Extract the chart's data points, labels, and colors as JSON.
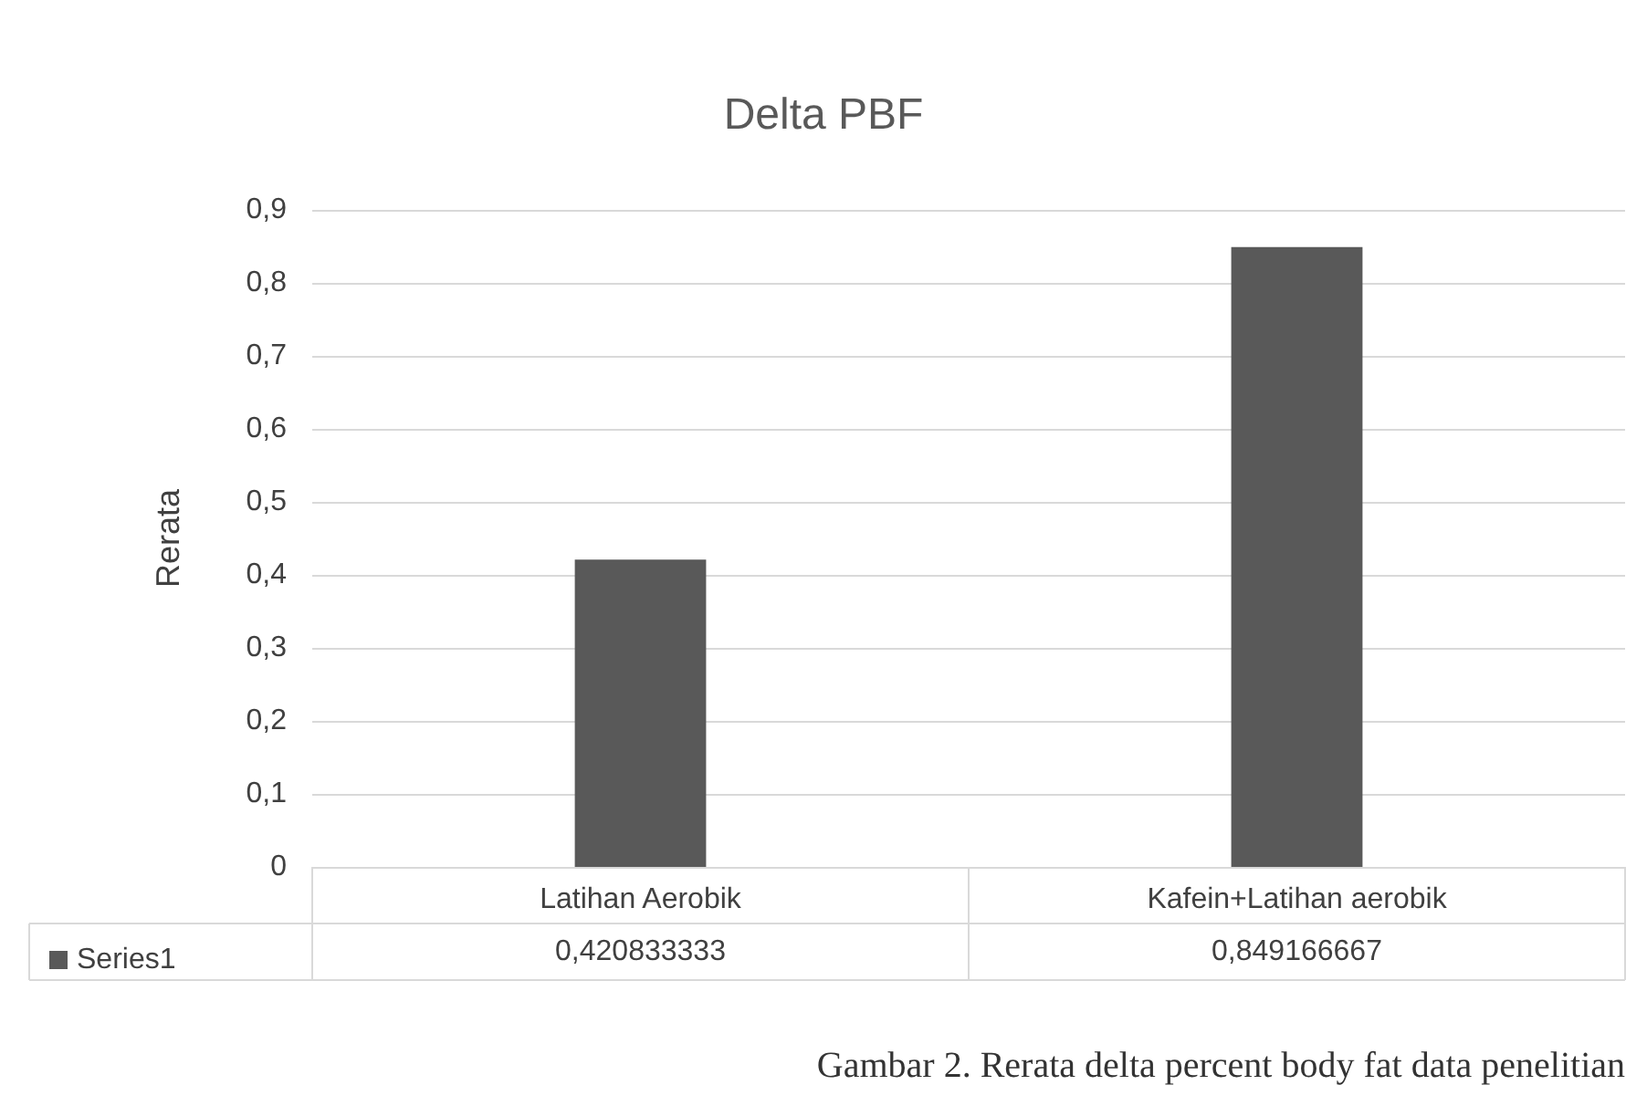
{
  "chart_data": {
    "type": "bar",
    "title": "Delta PBF",
    "ylabel": "Rerata",
    "categories": [
      "Latihan Aerobik",
      "Kafein+Latihan aerobik"
    ],
    "series": [
      {
        "name": "Series1",
        "color": "#595959",
        "values": [
          0.420833333,
          0.849166667
        ],
        "value_labels": [
          "0,420833333",
          "0,849166667"
        ]
      }
    ],
    "ylim": [
      0,
      0.9
    ],
    "yticks": [
      0,
      {
        "value": 0.1,
        "label": "0,1"
      },
      {
        "value": 0.2,
        "label": "0,2"
      },
      {
        "value": 0.3,
        "label": "0,3"
      },
      {
        "value": 0.4,
        "label": "0,4"
      },
      {
        "value": 0.5,
        "label": "0,5"
      },
      {
        "value": 0.6,
        "label": "0,6"
      },
      {
        "value": 0.7,
        "label": "0,7"
      },
      {
        "value": 0.8,
        "label": "0,8"
      },
      {
        "value": 0.9,
        "label": "0,9"
      }
    ],
    "grid": "y",
    "legend": "bottom left",
    "annotations": [
      "Gambar 2. Rerata delta percent body fat data penelitian"
    ]
  }
}
